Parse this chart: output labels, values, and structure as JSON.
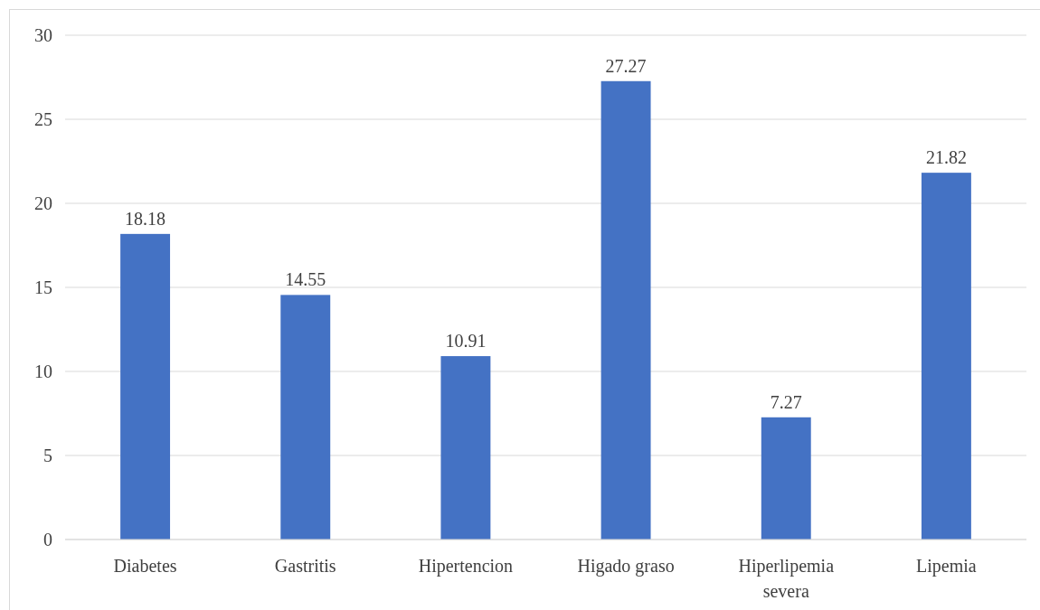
{
  "chart_data": {
    "type": "bar",
    "categories": [
      "Diabetes",
      "Gastritis",
      "Hipertencion",
      "Higado graso",
      "Hiperlipemia severa",
      "Lipemia"
    ],
    "values": [
      18.18,
      14.55,
      10.91,
      27.27,
      7.27,
      21.82
    ],
    "color": "#4472c4",
    "ylim": [
      0,
      30
    ],
    "yticks": [
      0,
      5,
      10,
      15,
      20,
      25,
      30
    ],
    "grid": "y",
    "data_labels": true
  }
}
